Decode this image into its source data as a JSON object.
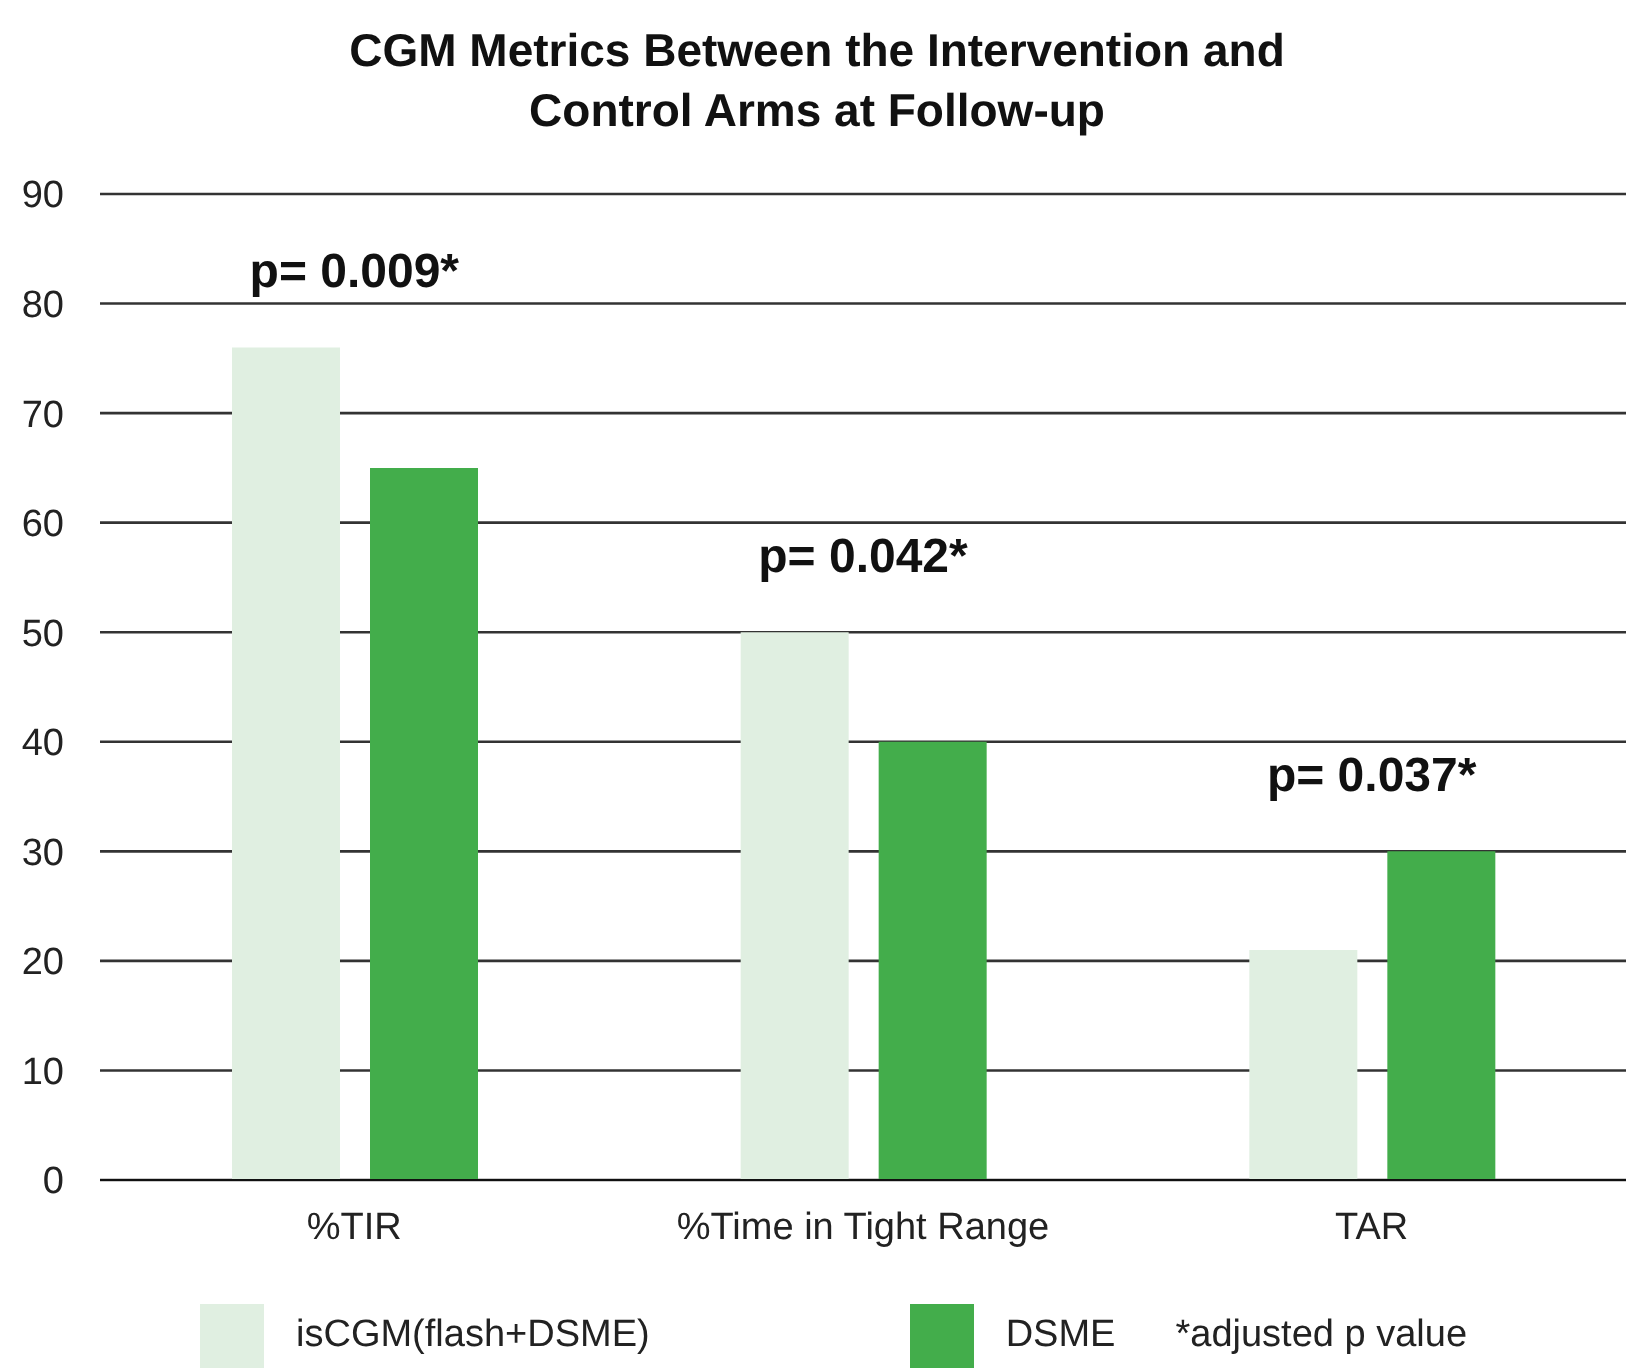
{
  "chart_data": {
    "type": "bar",
    "title": "CGM Metrics Between the Intervention and Control Arms at Follow-up",
    "categories": [
      "%TIR",
      "%Time in Tight Range",
      "TAR"
    ],
    "series": [
      {
        "name": "isCGM(flash+DSME)",
        "color": "#e0efe1",
        "values": [
          76,
          50,
          21
        ]
      },
      {
        "name": "DSME",
        "color": "#43ad4b",
        "values": [
          65,
          40,
          30
        ]
      }
    ],
    "ylim": [
      0,
      90
    ],
    "yticks": [
      0,
      10,
      20,
      30,
      40,
      50,
      60,
      70,
      80,
      90
    ],
    "grid": "y",
    "legend": "bottom",
    "annotations": [
      "p= 0.009*",
      "p= 0.042*",
      "p= 0.037*",
      "*adjusted p value"
    ]
  }
}
